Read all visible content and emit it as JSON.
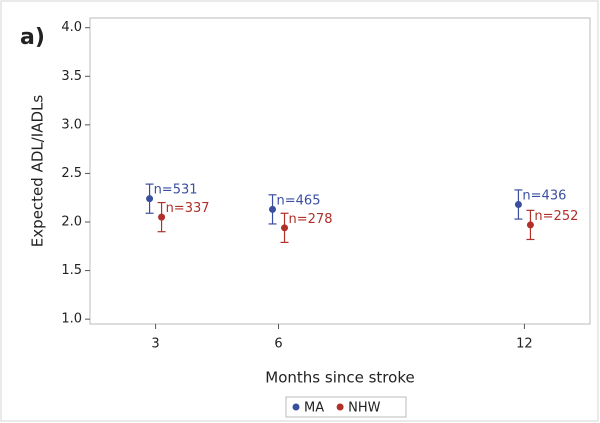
{
  "chart_data": {
    "type": "errorbar",
    "panel_label": "a)",
    "x_label": "Months since stroke",
    "y_label": "Expected ADL/IADLs",
    "x": [
      3,
      6,
      12
    ],
    "series": [
      {
        "name": "MA",
        "color": "#3b4fa0",
        "values": [
          2.24,
          2.13,
          2.18
        ],
        "errors": [
          0.15,
          0.15,
          0.15
        ],
        "labels": [
          "n=531",
          "n=465",
          "n=436"
        ]
      },
      {
        "name": "NHW",
        "color": "#b0302a",
        "values": [
          2.05,
          1.94,
          1.97
        ],
        "errors": [
          0.15,
          0.15,
          0.15
        ],
        "labels": [
          "n=337",
          "n=278",
          "n=252"
        ]
      }
    ],
    "xlim": [
      1.4,
      13.6
    ],
    "ylim": [
      0.95,
      4.1
    ],
    "xticks": [
      3,
      6,
      12
    ],
    "yticks": [
      {
        "value": 1,
        "label": "1.0"
      },
      {
        "value": 1.5,
        "label": "1.5"
      },
      {
        "value": 2,
        "label": "2.0"
      },
      {
        "value": 2.5,
        "label": "2.5"
      },
      {
        "value": 3,
        "label": "3.0"
      },
      {
        "value": 3.5,
        "label": "3.5"
      },
      {
        "value": 4,
        "label": "4.0"
      }
    ]
  }
}
